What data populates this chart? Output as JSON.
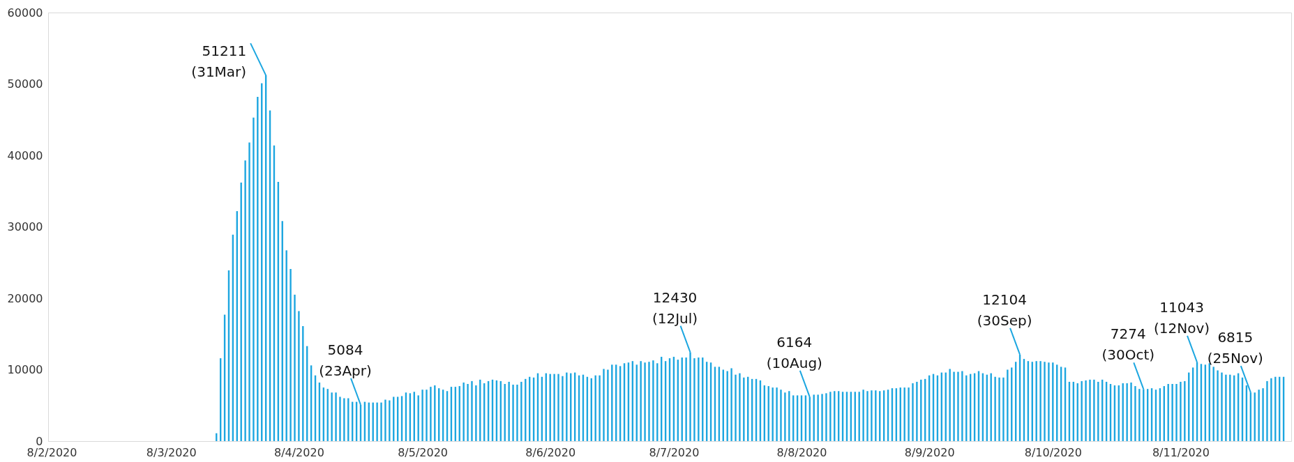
{
  "chart_data": {
    "type": "bar",
    "color": "#1ca6e0",
    "x": [
      "2020-03-19",
      "2020-03-20",
      "2020-03-21",
      "2020-03-22",
      "2020-03-23",
      "2020-03-24",
      "2020-03-25",
      "2020-03-26",
      "2020-03-27",
      "2020-03-28",
      "2020-03-29",
      "2020-03-30",
      "2020-03-31",
      "2020-04-01",
      "2020-04-02",
      "2020-04-03",
      "2020-04-04",
      "2020-04-05",
      "2020-04-06",
      "2020-04-07",
      "2020-04-08",
      "2020-04-09",
      "2020-04-10",
      "2020-04-11",
      "2020-04-12",
      "2020-04-13",
      "2020-04-14",
      "2020-04-15",
      "2020-04-16",
      "2020-04-17",
      "2020-04-18",
      "2020-04-19",
      "2020-04-20",
      "2020-04-21",
      "2020-04-22",
      "2020-04-23",
      "2020-04-24",
      "2020-04-25",
      "2020-04-26",
      "2020-04-27",
      "2020-04-28",
      "2020-04-29",
      "2020-04-30",
      "2020-05-01",
      "2020-05-02",
      "2020-05-03",
      "2020-05-04",
      "2020-05-05",
      "2020-05-06",
      "2020-05-07",
      "2020-05-08",
      "2020-05-09",
      "2020-05-10",
      "2020-05-11",
      "2020-05-12",
      "2020-05-13",
      "2020-05-14",
      "2020-05-15",
      "2020-05-16",
      "2020-05-17",
      "2020-05-18",
      "2020-05-19",
      "2020-05-20",
      "2020-05-21",
      "2020-05-22",
      "2020-05-23",
      "2020-05-24",
      "2020-05-25",
      "2020-05-26",
      "2020-05-27",
      "2020-05-28",
      "2020-05-29",
      "2020-05-30",
      "2020-05-31",
      "2020-06-01",
      "2020-06-02",
      "2020-06-03",
      "2020-06-04",
      "2020-06-05",
      "2020-06-06",
      "2020-06-07",
      "2020-06-08",
      "2020-06-09",
      "2020-06-10",
      "2020-06-11",
      "2020-06-12",
      "2020-06-13",
      "2020-06-14",
      "2020-06-15",
      "2020-06-16",
      "2020-06-17",
      "2020-06-18",
      "2020-06-19",
      "2020-06-20",
      "2020-06-21",
      "2020-06-22",
      "2020-06-23",
      "2020-06-24",
      "2020-06-25",
      "2020-06-26",
      "2020-06-27",
      "2020-06-28",
      "2020-06-29",
      "2020-06-30",
      "2020-07-01",
      "2020-07-02",
      "2020-07-03",
      "2020-07-04",
      "2020-07-05",
      "2020-07-06",
      "2020-07-07",
      "2020-07-08",
      "2020-07-09",
      "2020-07-10",
      "2020-07-11",
      "2020-07-12",
      "2020-07-13",
      "2020-07-14",
      "2020-07-15",
      "2020-07-16",
      "2020-07-17",
      "2020-07-18",
      "2020-07-19",
      "2020-07-20",
      "2020-07-21",
      "2020-07-22",
      "2020-07-23",
      "2020-07-24",
      "2020-07-25",
      "2020-07-26",
      "2020-07-27",
      "2020-07-28",
      "2020-07-29",
      "2020-07-30",
      "2020-07-31",
      "2020-08-01",
      "2020-08-02",
      "2020-08-03",
      "2020-08-04",
      "2020-08-05",
      "2020-08-06",
      "2020-08-07",
      "2020-08-08",
      "2020-08-09",
      "2020-08-10",
      "2020-08-11",
      "2020-08-12",
      "2020-08-13",
      "2020-08-14",
      "2020-08-15",
      "2020-08-16",
      "2020-08-17",
      "2020-08-18",
      "2020-08-19",
      "2020-08-20",
      "2020-08-21",
      "2020-08-22",
      "2020-08-23",
      "2020-08-24",
      "2020-08-25",
      "2020-08-26",
      "2020-08-27",
      "2020-08-28",
      "2020-08-29",
      "2020-08-30",
      "2020-08-31",
      "2020-09-01",
      "2020-09-02",
      "2020-09-03",
      "2020-09-04",
      "2020-09-05",
      "2020-09-06",
      "2020-09-07",
      "2020-09-08",
      "2020-09-09",
      "2020-09-10",
      "2020-09-11",
      "2020-09-12",
      "2020-09-13",
      "2020-09-14",
      "2020-09-15",
      "2020-09-16",
      "2020-09-17",
      "2020-09-18",
      "2020-09-19",
      "2020-09-20",
      "2020-09-21",
      "2020-09-22",
      "2020-09-23",
      "2020-09-24",
      "2020-09-25",
      "2020-09-26",
      "2020-09-27",
      "2020-09-28",
      "2020-09-29",
      "2020-09-30",
      "2020-10-01",
      "2020-10-02",
      "2020-10-03",
      "2020-10-04",
      "2020-10-05",
      "2020-10-06",
      "2020-10-07",
      "2020-10-08",
      "2020-10-09",
      "2020-10-10",
      "2020-10-11",
      "2020-10-12",
      "2020-10-13",
      "2020-10-14",
      "2020-10-15",
      "2020-10-16",
      "2020-10-17",
      "2020-10-18",
      "2020-10-19",
      "2020-10-20",
      "2020-10-21",
      "2020-10-22",
      "2020-10-23",
      "2020-10-24",
      "2020-10-25",
      "2020-10-26",
      "2020-10-27",
      "2020-10-28",
      "2020-10-29",
      "2020-10-30",
      "2020-10-31",
      "2020-11-01",
      "2020-11-02",
      "2020-11-03",
      "2020-11-04",
      "2020-11-05",
      "2020-11-06",
      "2020-11-07",
      "2020-11-08",
      "2020-11-09",
      "2020-11-10",
      "2020-11-11",
      "2020-11-12",
      "2020-11-13",
      "2020-11-14",
      "2020-11-15",
      "2020-11-16",
      "2020-11-17",
      "2020-11-18",
      "2020-11-19",
      "2020-11-20",
      "2020-11-21",
      "2020-11-22",
      "2020-11-23",
      "2020-11-24",
      "2020-11-25",
      "2020-11-26",
      "2020-11-27",
      "2020-11-28",
      "2020-11-29",
      "2020-11-30",
      "2020-12-01",
      "2020-12-02",
      "2020-12-03"
    ],
    "values": [
      1100,
      11600,
      17700,
      23900,
      28900,
      32200,
      36200,
      39300,
      41800,
      45300,
      48200,
      50100,
      51211,
      46300,
      41400,
      36300,
      30800,
      26700,
      24100,
      20500,
      18200,
      16100,
      13300,
      10600,
      9200,
      8200,
      7500,
      7300,
      6800,
      6800,
      6200,
      6000,
      6000,
      5500,
      5500,
      5084,
      5500,
      5400,
      5400,
      5400,
      5400,
      5800,
      5700,
      6200,
      6200,
      6300,
      6800,
      6700,
      6900,
      6400,
      7200,
      7200,
      7600,
      7800,
      7400,
      7200,
      7000,
      7600,
      7600,
      7700,
      8200,
      8000,
      8400,
      7800,
      8600,
      8100,
      8400,
      8600,
      8500,
      8400,
      8000,
      8300,
      7900,
      7900,
      8300,
      8700,
      9000,
      8900,
      9500,
      9000,
      9500,
      9400,
      9400,
      9400,
      9100,
      9600,
      9500,
      9600,
      9200,
      9300,
      9000,
      8800,
      9200,
      9200,
      10100,
      10000,
      10700,
      10700,
      10500,
      10900,
      11000,
      11200,
      10700,
      11200,
      11000,
      11100,
      11300,
      10900,
      11800,
      11200,
      11600,
      11800,
      11400,
      11700,
      11700,
      12430,
      11600,
      11700,
      11700,
      11100,
      11000,
      10400,
      10400,
      10000,
      9800,
      10200,
      9300,
      9500,
      8900,
      9000,
      8700,
      8700,
      8500,
      7800,
      7700,
      7500,
      7500,
      7200,
      6800,
      7000,
      6400,
      6400,
      6400,
      6400,
      6164,
      6500,
      6500,
      6600,
      6700,
      6900,
      7000,
      7000,
      6900,
      6900,
      6900,
      6900,
      6900,
      7200,
      7000,
      7100,
      7100,
      7000,
      7100,
      7200,
      7400,
      7400,
      7500,
      7500,
      7500,
      8100,
      8300,
      8600,
      8700,
      9200,
      9400,
      9200,
      9600,
      9600,
      10100,
      9700,
      9700,
      9800,
      9200,
      9400,
      9500,
      9800,
      9500,
      9300,
      9500,
      9000,
      8900,
      8900,
      10000,
      10300,
      11100,
      12104,
      11500,
      11200,
      11100,
      11200,
      11200,
      11100,
      11000,
      11000,
      10700,
      10400,
      10300,
      8300,
      8300,
      8100,
      8400,
      8500,
      8600,
      8600,
      8300,
      8600,
      8300,
      8000,
      7800,
      7800,
      8100,
      8100,
      8200,
      7700,
      7300,
      7274,
      7300,
      7400,
      7200,
      7400,
      7700,
      8000,
      8000,
      8000,
      8300,
      8400,
      9600,
      10300,
      11043,
      10800,
      10700,
      10900,
      10400,
      9900,
      9600,
      9300,
      9300,
      9200,
      9500,
      8900,
      7800,
      6815,
      6800,
      7200,
      7400,
      8400,
      8800,
      9000,
      9000,
      9000
    ],
    "xlim": [
      "2020-02-08",
      "2020-12-04"
    ],
    "xticks": [
      {
        "value": "2020-02-08",
        "label": "8/2/2020"
      },
      {
        "value": "2020-03-08",
        "label": "8/3/2020"
      },
      {
        "value": "2020-04-08",
        "label": "8/4/2020"
      },
      {
        "value": "2020-05-08",
        "label": "8/5/2020"
      },
      {
        "value": "2020-06-08",
        "label": "8/6/2020"
      },
      {
        "value": "2020-07-08",
        "label": "8/7/2020"
      },
      {
        "value": "2020-08-08",
        "label": "8/8/2020"
      },
      {
        "value": "2020-09-08",
        "label": "8/9/2020"
      },
      {
        "value": "2020-10-08",
        "label": "8/10/2020"
      },
      {
        "value": "2020-11-08",
        "label": "8/11/2020"
      }
    ],
    "ylim": [
      0,
      60000
    ],
    "yticks": [
      0,
      10000,
      20000,
      30000,
      40000,
      50000,
      60000
    ],
    "grid": false,
    "annotations": [
      {
        "text": "51211\n(31Mar)",
        "x": "2020-03-31",
        "y": 51211
      },
      {
        "text": "5084\n(23Apr)",
        "x": "2020-04-23",
        "y": 5084
      },
      {
        "text": "12430\n(12Jul)",
        "x": "2020-07-12",
        "y": 12430
      },
      {
        "text": "6164\n(10Aug)",
        "x": "2020-08-10",
        "y": 6164
      },
      {
        "text": "12104\n(30Sep)",
        "x": "2020-09-30",
        "y": 12104
      },
      {
        "text": "7274\n(30Oct)",
        "x": "2020-10-30",
        "y": 7274
      },
      {
        "text": "11043\n(12Nov)",
        "x": "2020-11-12",
        "y": 11043
      },
      {
        "text": "6815\n(25Nov)",
        "x": "2020-11-25",
        "y": 6815
      }
    ]
  }
}
